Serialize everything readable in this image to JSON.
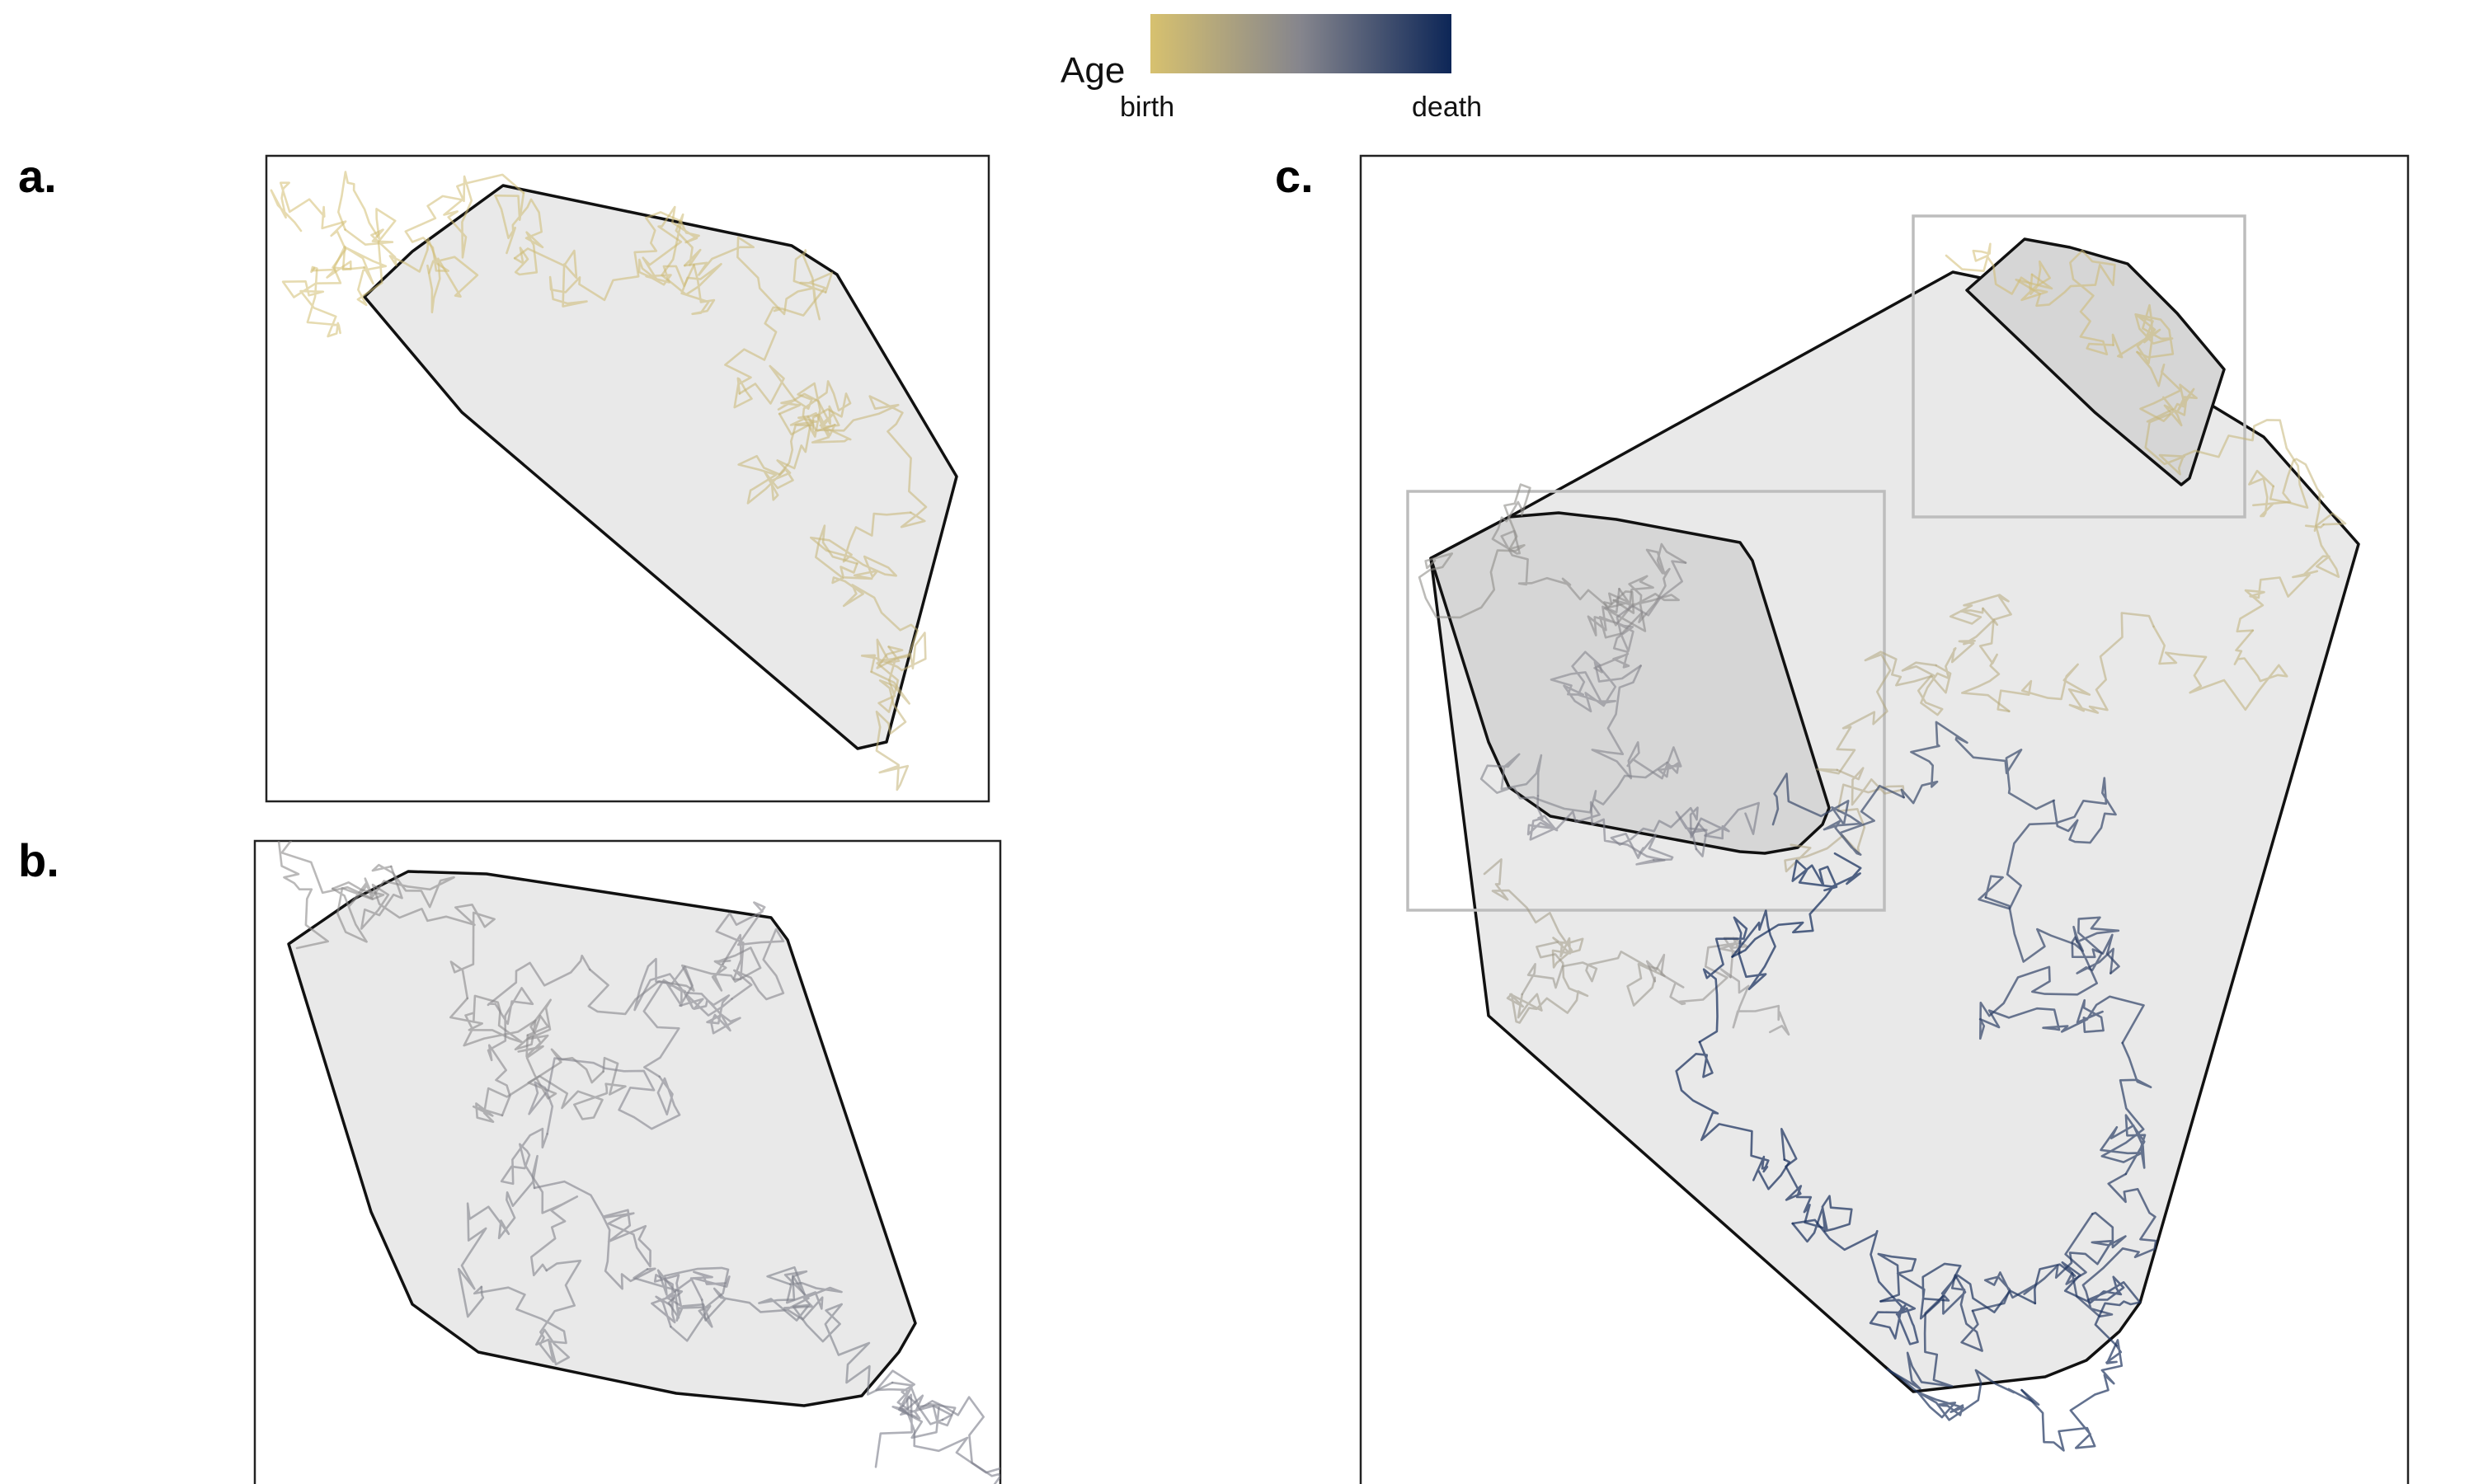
{
  "legend": {
    "title": "Age",
    "start_label": "birth",
    "end_label": "death",
    "color_start": "#d7c16f",
    "color_mid": "#85858d",
    "color_end": "#0d2657"
  },
  "panels": {
    "a": {
      "label": "a."
    },
    "b": {
      "label": "b."
    },
    "c": {
      "label": "c."
    }
  },
  "colors": {
    "hull_fill": "#e9e9e9",
    "hull_inner_fill": "#d6d6d6",
    "hull_stroke": "#111111",
    "inset_stroke": "#bdbdbd"
  }
}
